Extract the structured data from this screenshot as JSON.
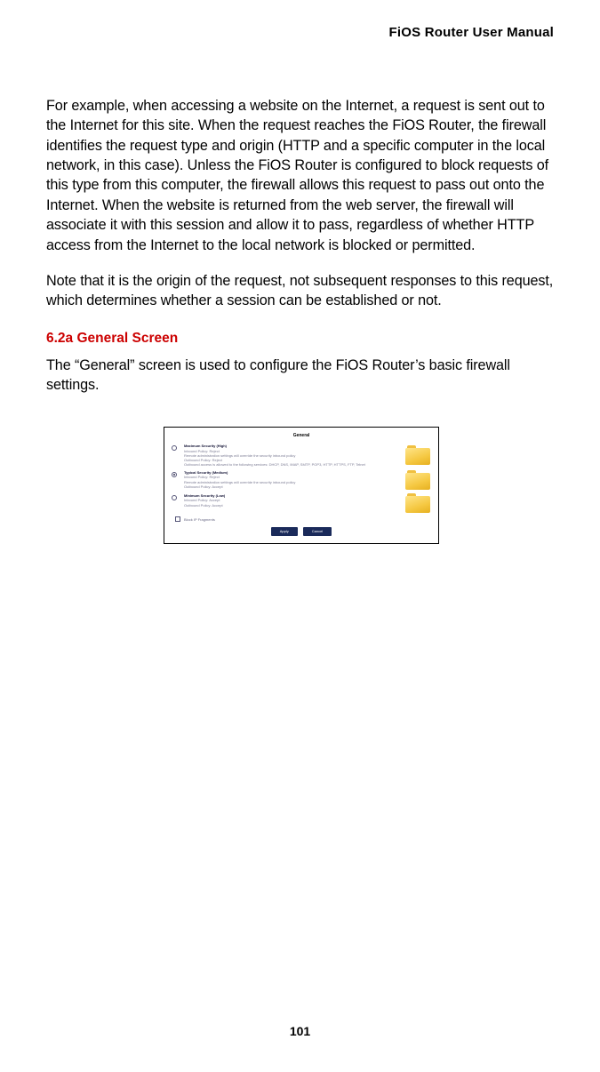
{
  "header": {
    "title": "FiOS Router User Manual"
  },
  "paragraphs": {
    "p1": "For example, when accessing a website on the Internet, a request is sent out to the Internet for this site. When the request reaches the FiOS Router, the firewall identifies the request type and origin (HTTP and a specific computer in the local network, in this case). Unless the FiOS Router is configured to block requests of this type from this computer, the firewall allows this request to pass out onto the Internet. When the website is returned from the web server, the firewall will associate it with this session and allow it to pass, regardless of whether HTTP access from the Internet to the local network is blocked or permitted.",
    "p2": "Note that it is the origin of the request, not subsequent responses to this request, which determines whether a session can be established or not."
  },
  "section": {
    "heading": "6.2a  General Screen",
    "intro": "The “General” screen is used to configure the FiOS Router’s basic firewall settings."
  },
  "figure": {
    "title": "General",
    "options": [
      {
        "title": "Maximum Security (High)",
        "desc_line1": "Inbound Policy: Reject",
        "desc_line2": "Remote administration settings will override the security inbound policy",
        "desc_line3": "Outbound Policy: Reject",
        "desc_line4": "Outbound access is allowed to the following services: DHCP, DNS, IMAP, SMTP, POP3, HTTP, HTTPS, FTP, Telnet",
        "checked": false
      },
      {
        "title": "Typical Security (Medium)",
        "desc_line1": "Inbound Policy: Reject",
        "desc_line2": "Remote administration settings will override the security inbound policy",
        "desc_line3": "Outbound Policy: Accept",
        "checked": true
      },
      {
        "title": "Minimum Security (Low)",
        "desc_line1": "Inbound Policy: Accept",
        "desc_line2": "Outbound Policy: Accept",
        "checked": false
      }
    ],
    "footer_checkbox_label": "Block IP Fragments",
    "buttons": {
      "apply": "Apply",
      "cancel": "Cancel"
    }
  },
  "page_number": "101",
  "colors": {
    "heading_red": "#cc0000",
    "button_bg": "#1a2a5a",
    "folder_fill": "#f5c842"
  }
}
